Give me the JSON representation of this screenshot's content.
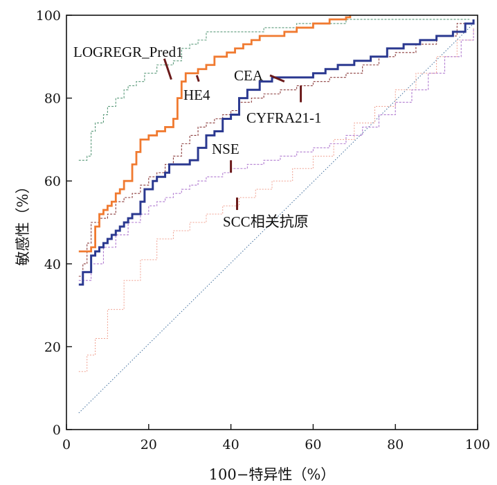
{
  "chart_data": {
    "type": "line",
    "title": "",
    "xlabel": "100−特异性（%）",
    "ylabel": "敏感性（%）",
    "xlim": [
      0,
      100
    ],
    "ylim": [
      0,
      100
    ],
    "x_ticks": [
      "0",
      "20",
      "40",
      "60",
      "80",
      "100"
    ],
    "y_ticks": [
      "0",
      "20",
      "40",
      "60",
      "80",
      "100"
    ],
    "grid": false,
    "colors": {
      "LOGREGR_Pred1": "#5a9a7a",
      "HE4": "#f07a30",
      "CEA": "#2b3990",
      "CYFRA21-1": "#8a3a3a",
      "NSE": "#b07ad0",
      "SCC相关抗原": "#f0a090",
      "reference": "#3a6a9a",
      "pointer": "#6b1a1a"
    },
    "series": [
      {
        "name": "LOGREGR_Pred1",
        "style": "dashed",
        "x": [
          3,
          5,
          6,
          7,
          9,
          10,
          12,
          14,
          15,
          17,
          19,
          21,
          22,
          24,
          26,
          28,
          30,
          32,
          34,
          36,
          40,
          44,
          48,
          52,
          56,
          62,
          68,
          75,
          85,
          98
        ],
        "y": [
          65,
          66,
          72,
          74,
          76,
          78,
          80,
          82,
          83,
          84,
          86,
          86,
          88,
          88,
          89,
          92,
          93,
          94,
          96,
          96,
          96,
          96,
          97,
          97,
          98,
          98,
          99,
          99,
          99,
          99
        ]
      },
      {
        "name": "HE4",
        "style": "solid",
        "x": [
          3,
          5,
          6,
          7,
          8,
          9,
          10,
          11,
          12,
          13,
          14,
          15,
          16,
          17,
          18,
          20,
          22,
          24,
          26,
          27,
          28,
          29,
          30,
          32,
          34,
          36,
          39,
          41,
          43,
          45,
          47,
          50,
          53,
          56,
          60,
          64,
          68,
          69
        ],
        "y": [
          43,
          43,
          44,
          49,
          52,
          53,
          54,
          55,
          57,
          58,
          60,
          60,
          64,
          67,
          70,
          71,
          72,
          73,
          75,
          80,
          84,
          86,
          86,
          87,
          88,
          90,
          91,
          92,
          93,
          94,
          95,
          95,
          96,
          97,
          98,
          99,
          99.5,
          100
        ]
      },
      {
        "name": "CEA",
        "style": "solid",
        "x": [
          3,
          4,
          6,
          7,
          8,
          9,
          10,
          11,
          12,
          13,
          14,
          15,
          16,
          18,
          19,
          21,
          22,
          24,
          25,
          27,
          30,
          32,
          34,
          36,
          38,
          40,
          42,
          44,
          47,
          50,
          53,
          57,
          60,
          63,
          66,
          70,
          74,
          78,
          82,
          86,
          90,
          94,
          97,
          99
        ],
        "y": [
          35,
          38,
          42,
          43,
          44,
          45,
          46,
          47,
          48,
          49,
          50,
          51,
          52,
          55,
          58,
          60,
          61,
          62,
          64,
          64,
          65,
          68,
          71,
          72,
          75,
          76,
          80,
          82,
          84,
          85,
          85,
          85,
          86,
          87,
          88,
          89,
          90,
          92,
          93,
          94,
          95,
          96,
          98,
          99
        ]
      },
      {
        "name": "CYFRA21-1",
        "style": "dashed",
        "x": [
          3,
          4,
          5,
          6,
          8,
          10,
          12,
          14,
          16,
          18,
          20,
          22,
          24,
          26,
          28,
          30,
          32,
          34,
          36,
          38,
          40,
          42,
          45,
          48,
          52,
          56,
          60,
          64,
          68,
          72,
          76,
          80,
          85,
          90,
          95,
          99
        ],
        "y": [
          37,
          40,
          45,
          50,
          51,
          52,
          55,
          56,
          57,
          59,
          61,
          62,
          64,
          66,
          69,
          71,
          73,
          74,
          75,
          76,
          77,
          79,
          80,
          81,
          82,
          83,
          84,
          85,
          86,
          88,
          90,
          91,
          93,
          95,
          98,
          99
        ]
      },
      {
        "name": "NSE",
        "style": "dashed",
        "x": [
          3,
          6,
          9,
          12,
          15,
          18,
          20,
          22,
          24,
          26,
          28,
          30,
          32,
          34,
          36,
          38,
          40,
          44,
          48,
          52,
          56,
          60,
          64,
          68,
          72,
          76,
          80,
          84,
          88,
          92,
          96,
          99
        ],
        "y": [
          36,
          40,
          44,
          47,
          50,
          52,
          54,
          55,
          56,
          57,
          58,
          59,
          60,
          61,
          61,
          62,
          63,
          64,
          65,
          66,
          67,
          68,
          69,
          71,
          73,
          76,
          79,
          82,
          86,
          90,
          94,
          97
        ]
      },
      {
        "name": "SCC相关抗原",
        "style": "dotted",
        "x": [
          3,
          5,
          7,
          10,
          14,
          18,
          22,
          26,
          30,
          34,
          38,
          42,
          46,
          50,
          55,
          60,
          65,
          70,
          75,
          80,
          85,
          90,
          95,
          99
        ],
        "y": [
          14,
          18,
          22,
          29,
          36,
          41,
          46,
          48,
          50,
          52,
          54,
          56,
          58,
          60,
          63,
          66,
          70,
          74,
          78,
          82,
          86,
          90,
          94,
          97
        ]
      }
    ],
    "reference_line": {
      "x": [
        3,
        99
      ],
      "y": [
        4,
        98
      ]
    },
    "annotations": [
      {
        "series": "LOGREGR_Pred1",
        "text": "LOGREGR_Pred1",
        "pointer": {
          "x1": 23.8,
          "y1": 89.5,
          "x2": 25.5,
          "y2": 84.5
        }
      },
      {
        "series": "HE4",
        "text": "HE4",
        "pointer": {
          "x1": 31.7,
          "y1": 85.5,
          "x2": 32.2,
          "y2": 84
        }
      },
      {
        "series": "CEA",
        "text": "CEA",
        "pointer": {
          "x1": 49.5,
          "y1": 85.5,
          "x2": 53,
          "y2": 84
        }
      },
      {
        "series": "CYFRA21-1",
        "text": "CYFRA21-1",
        "pointer": {
          "x1": 57,
          "y1": 83,
          "x2": 57,
          "y2": 79
        }
      },
      {
        "series": "NSE",
        "text": "NSE",
        "pointer": {
          "x1": 40,
          "y1": 65,
          "x2": 40,
          "y2": 62
        }
      },
      {
        "series": "SCC相关抗原",
        "text": "SCC相关抗原",
        "pointer": {
          "x1": 41.5,
          "y1": 56,
          "x2": 41.5,
          "y2": 53
        }
      }
    ]
  }
}
